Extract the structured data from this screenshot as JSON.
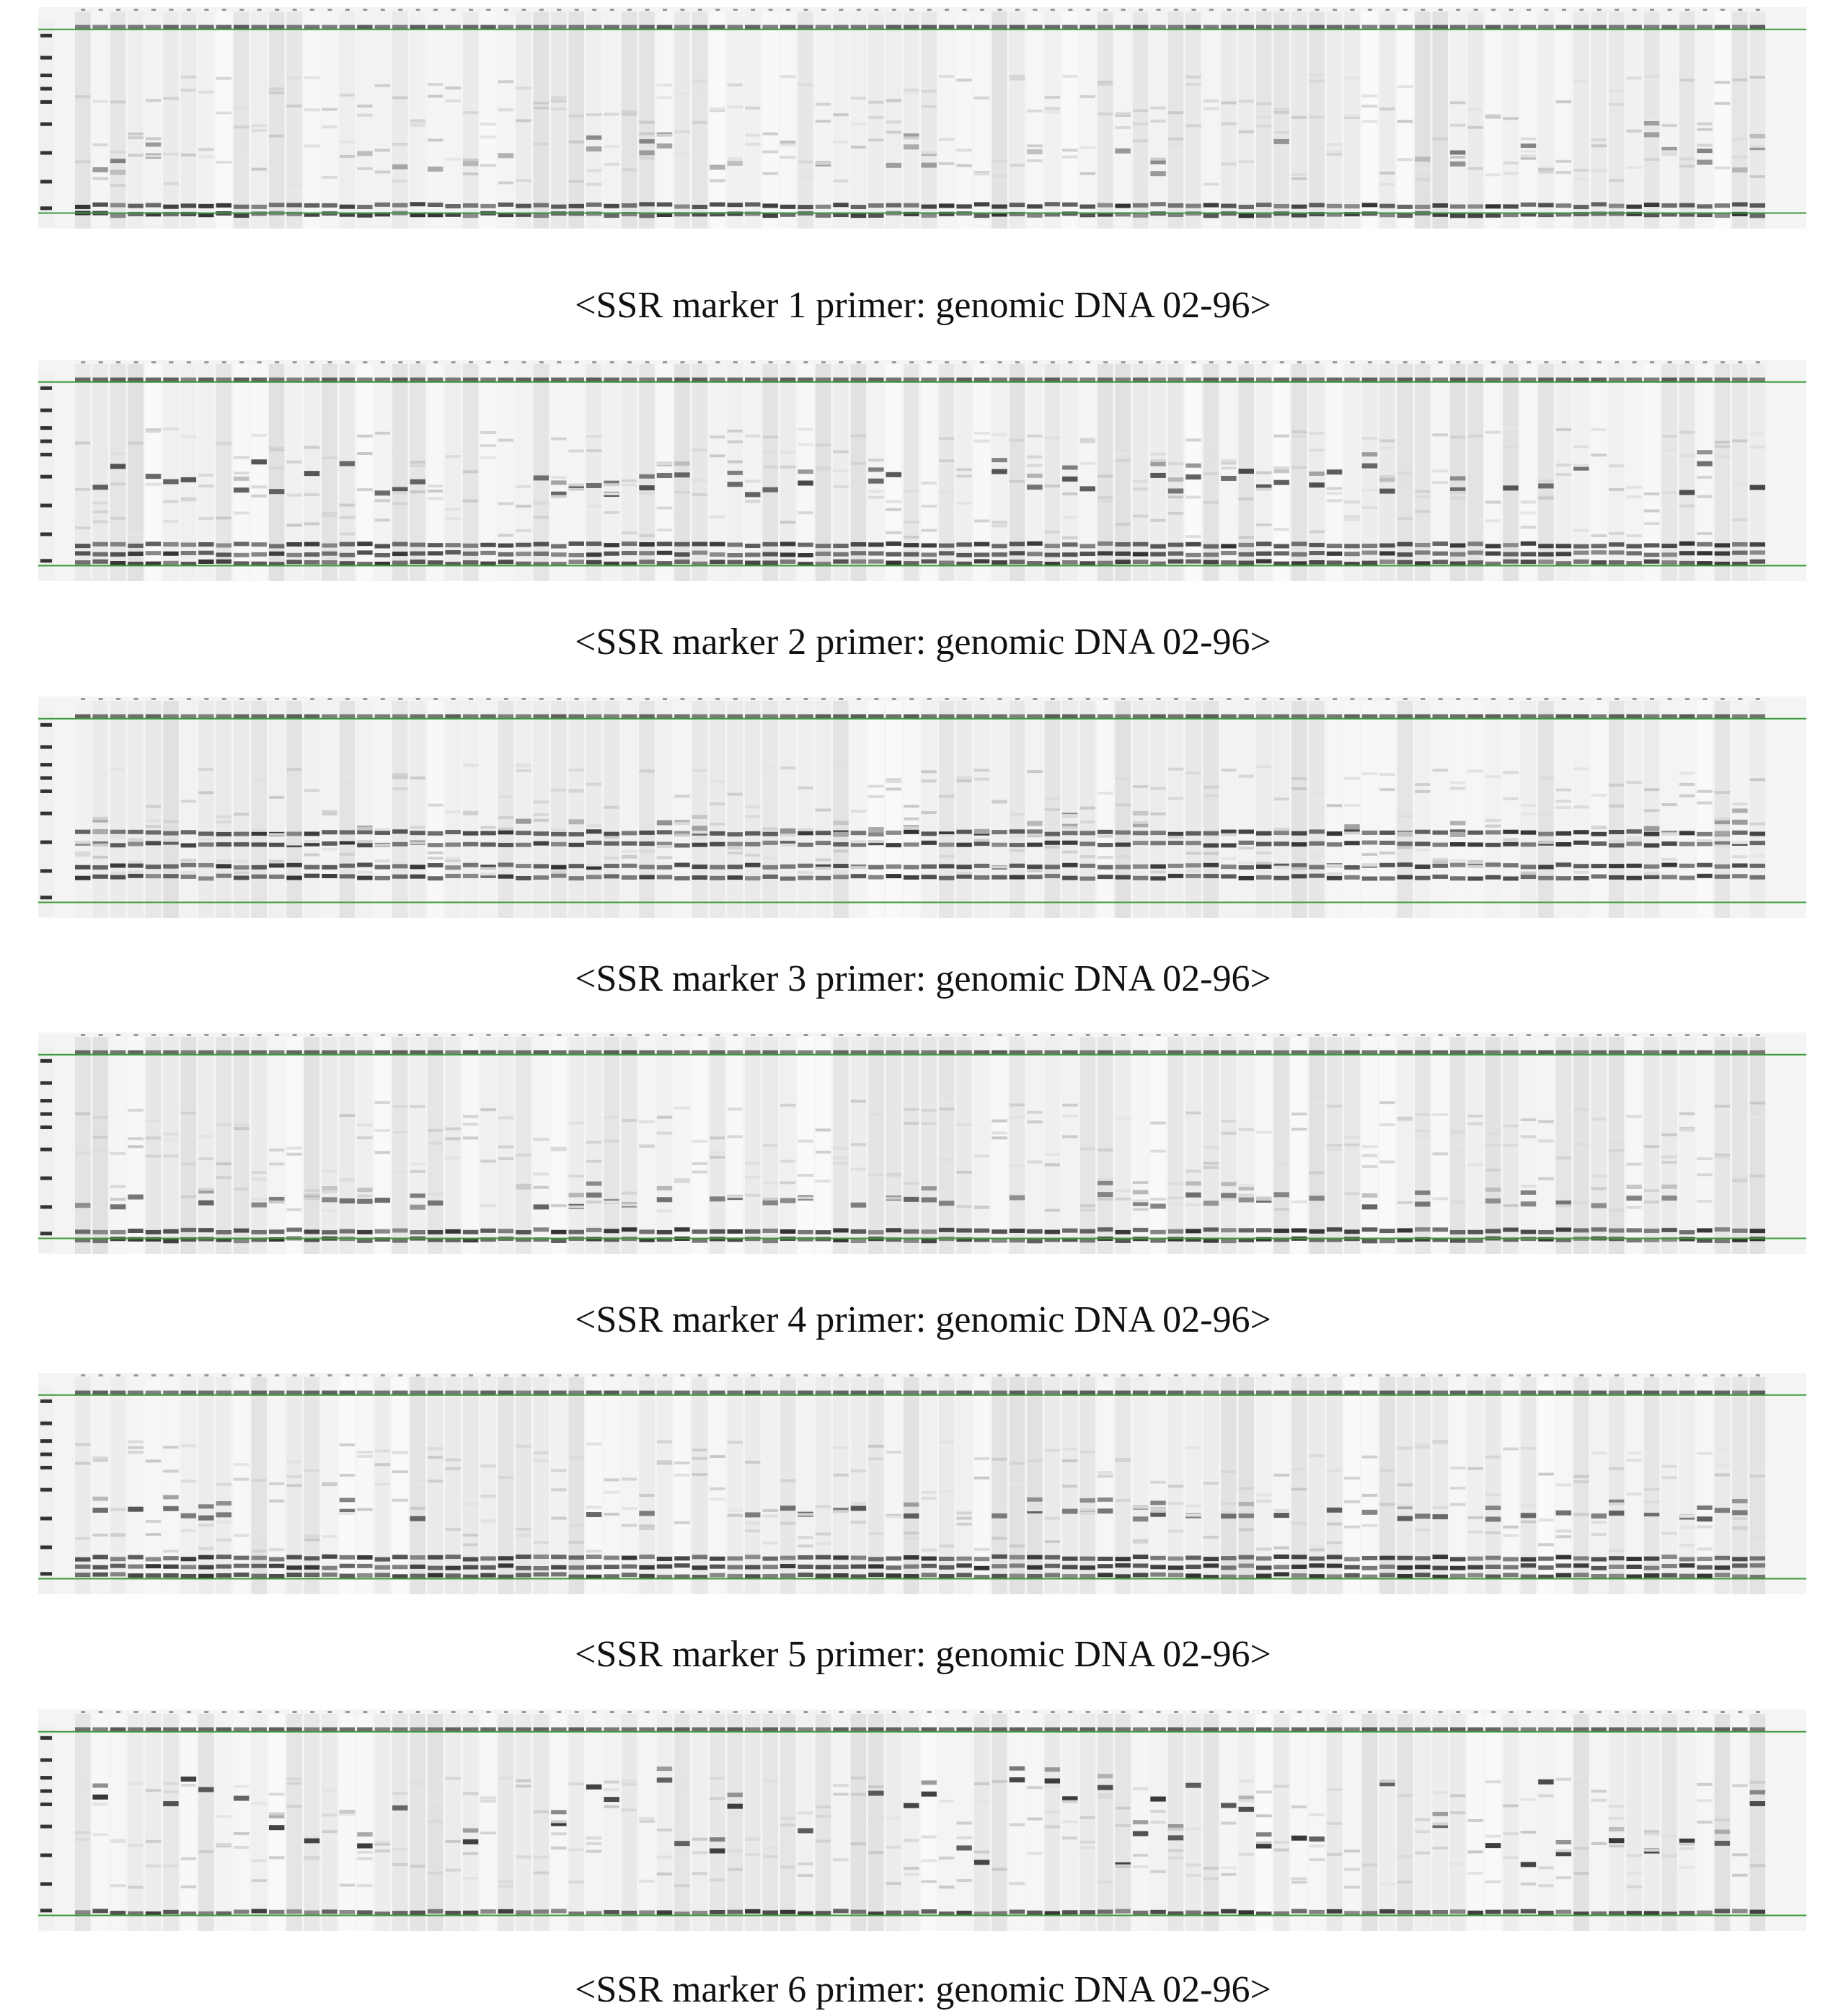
{
  "panels": [
    {
      "caption": "<SSR marker 1 primer: genomic DNA 02-96>"
    },
    {
      "caption": "<SSR marker 2 primer: genomic DNA 02-96>"
    },
    {
      "caption": "<SSR marker 3 primer: genomic DNA 02-96>"
    },
    {
      "caption": "<SSR marker 4 primer: genomic DNA 02-96>"
    },
    {
      "caption": "<SSR marker 5 primer: genomic DNA 02-96>"
    },
    {
      "caption": "<SSR marker 6 primer: genomic DNA 02-96>"
    }
  ]
}
